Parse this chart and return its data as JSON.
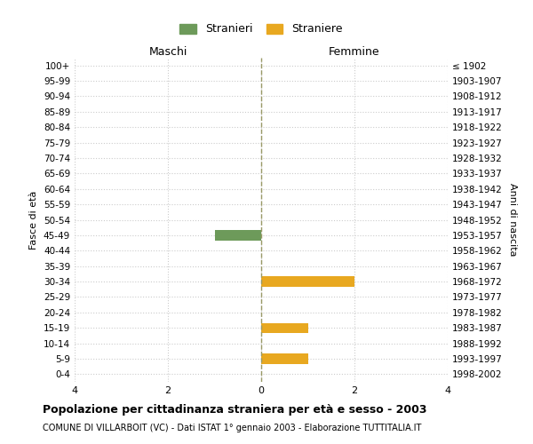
{
  "age_groups": [
    "100+",
    "95-99",
    "90-94",
    "85-89",
    "80-84",
    "75-79",
    "70-74",
    "65-69",
    "60-64",
    "55-59",
    "50-54",
    "45-49",
    "40-44",
    "35-39",
    "30-34",
    "25-29",
    "20-24",
    "15-19",
    "10-14",
    "5-9",
    "0-4"
  ],
  "birth_years": [
    "≤ 1902",
    "1903-1907",
    "1908-1912",
    "1913-1917",
    "1918-1922",
    "1923-1927",
    "1928-1932",
    "1933-1937",
    "1938-1942",
    "1943-1947",
    "1948-1952",
    "1953-1957",
    "1958-1962",
    "1963-1967",
    "1968-1972",
    "1973-1977",
    "1978-1982",
    "1983-1987",
    "1988-1992",
    "1993-1997",
    "1998-2002"
  ],
  "males": [
    0,
    0,
    0,
    0,
    0,
    0,
    0,
    0,
    0,
    0,
    0,
    1,
    0,
    0,
    0,
    0,
    0,
    0,
    0,
    0,
    0
  ],
  "females": [
    0,
    0,
    0,
    0,
    0,
    0,
    0,
    0,
    0,
    0,
    0,
    0,
    0,
    0,
    2,
    0,
    0,
    1,
    0,
    1,
    0
  ],
  "male_color": "#6d9a5a",
  "female_color": "#e8a820",
  "xlim": 4,
  "title": "Popolazione per cittadinanza straniera per età e sesso - 2003",
  "subtitle": "COMUNE DI VILLARBOIT (VC) - Dati ISTAT 1° gennaio 2003 - Elaborazione TUTTITALIA.IT",
  "ylabel_left": "Fasce di età",
  "ylabel_right": "Anni di nascita",
  "legend_male": "Stranieri",
  "legend_female": "Straniere",
  "maschi_label": "Maschi",
  "femmine_label": "Femmine",
  "background_color": "#ffffff",
  "grid_color": "#cccccc"
}
